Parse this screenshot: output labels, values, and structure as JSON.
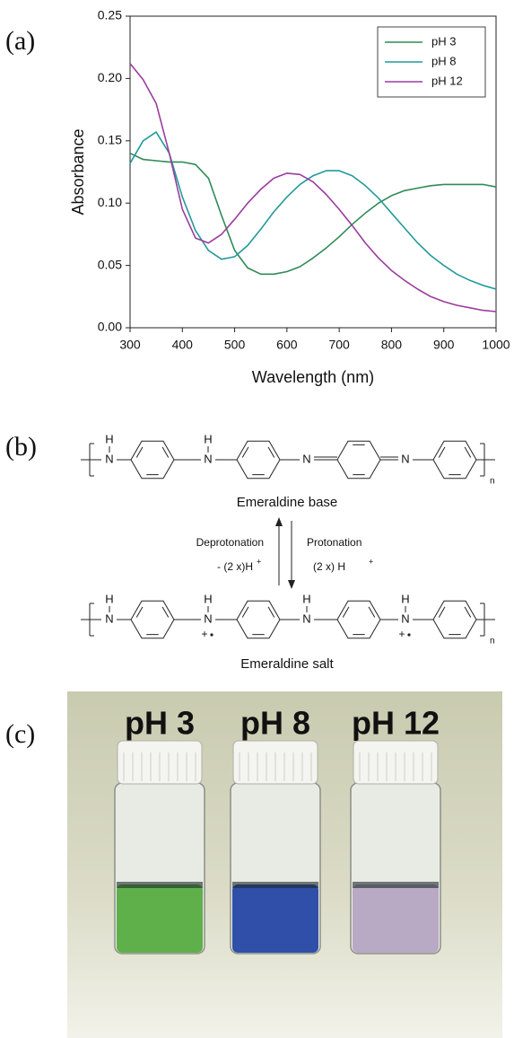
{
  "panel_labels": [
    "(a)",
    "(b)",
    "(c)"
  ],
  "chart_data": {
    "type": "line",
    "xlabel": "Wavelength (nm)",
    "ylabel": "Absorbance",
    "x": [
      300,
      325,
      350,
      375,
      400,
      425,
      450,
      475,
      500,
      525,
      550,
      575,
      600,
      625,
      650,
      675,
      700,
      725,
      750,
      775,
      800,
      825,
      850,
      875,
      900,
      925,
      950,
      975,
      1000
    ],
    "xlim": [
      300,
      1000
    ],
    "xticks": [
      300,
      400,
      500,
      600,
      700,
      800,
      900,
      1000
    ],
    "ylim": [
      0,
      0.25
    ],
    "yticks": [
      {
        "value": 0,
        "label": "0.00"
      },
      0.05,
      {
        "value": 0.1,
        "label": "0.10"
      },
      0.15,
      {
        "value": 0.2,
        "label": "0.20"
      },
      0.25
    ],
    "legend": "top-right",
    "series": [
      {
        "name": "pH 3",
        "color": "#2f8a55",
        "values": [
          0.14,
          0.135,
          0.134,
          0.133,
          0.133,
          0.131,
          0.12,
          0.09,
          0.062,
          0.048,
          0.043,
          0.043,
          0.045,
          0.049,
          0.056,
          0.064,
          0.073,
          0.083,
          0.092,
          0.1,
          0.106,
          0.11,
          0.112,
          0.114,
          0.115,
          0.115,
          0.115,
          0.115,
          0.113
        ]
      },
      {
        "name": "pH 8",
        "color": "#229a9a",
        "values": [
          0.132,
          0.15,
          0.157,
          0.14,
          0.105,
          0.078,
          0.062,
          0.055,
          0.057,
          0.066,
          0.079,
          0.093,
          0.105,
          0.115,
          0.122,
          0.126,
          0.126,
          0.122,
          0.114,
          0.104,
          0.092,
          0.08,
          0.068,
          0.058,
          0.05,
          0.043,
          0.038,
          0.034,
          0.031
        ]
      },
      {
        "name": "pH 12",
        "color": "#9a3c9e",
        "values": [
          0.212,
          0.199,
          0.18,
          0.14,
          0.095,
          0.072,
          0.068,
          0.075,
          0.087,
          0.1,
          0.111,
          0.12,
          0.124,
          0.123,
          0.117,
          0.107,
          0.095,
          0.082,
          0.068,
          0.056,
          0.046,
          0.038,
          0.031,
          0.025,
          0.021,
          0.018,
          0.016,
          0.014,
          0.013
        ]
      }
    ]
  },
  "diagram": {
    "hydrogen": "H",
    "nitrogen": "N",
    "repeat": "n",
    "charge": "+",
    "base_name": "Emeraldine base",
    "salt_name": "Emeraldine salt",
    "deprotonation": "Deprotonation",
    "deprotonation_amount": "- (2 x)H",
    "protonation": "Protonation",
    "protonation_amount": "(2 x) H"
  },
  "photo": {
    "labels": [
      "pH 3",
      "pH 8",
      "pH 12"
    ]
  }
}
